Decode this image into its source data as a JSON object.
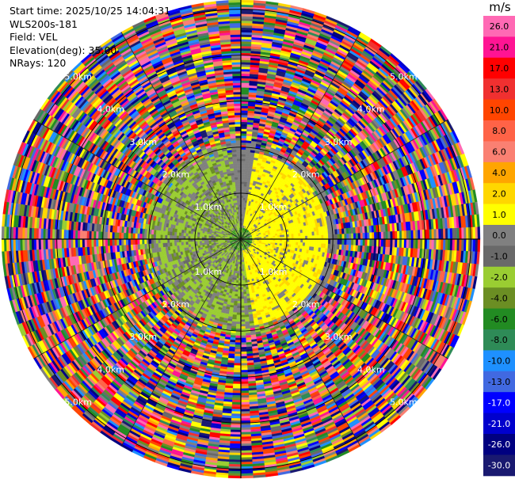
{
  "header": {
    "start_time": "Start time: 2025/10/25 14:04:31",
    "site": "WLS200s-181",
    "field": "Field: VEL",
    "elevation": "Elevation(deg): 35.00",
    "nrays": "NRays: 120"
  },
  "chart_data": {
    "type": "heatmap",
    "projection": "polar PPI",
    "field": "VEL",
    "n_rays": 120,
    "units": "m/s",
    "range_rings_km": [
      1.0,
      2.0,
      3.0,
      4.0,
      5.0
    ],
    "range_labels": [
      "1.0km",
      "2.0km",
      "3.0km",
      "4.0km",
      "5.0km"
    ],
    "max_range_km": 5.2,
    "colorbar": {
      "unit_label": "m/s",
      "ticks": [
        "26.0",
        "21.0",
        "17.0",
        "13.0",
        "10.0",
        "8.0",
        "6.0",
        "4.0",
        "2.0",
        "1.0",
        "0.0",
        "-1.0",
        "-2.0",
        "-4.0",
        "-6.0",
        "-8.0",
        "-10.0",
        "-13.0",
        "-17.0",
        "-21.0",
        "-26.0",
        "-30.0"
      ],
      "colors": [
        "#ff69b4",
        "#ff1493",
        "#ff0000",
        "#f03030",
        "#ff4500",
        "#ff6347",
        "#fa8072",
        "#ffa500",
        "#ffd700",
        "#ffff00",
        "#808080",
        "#696969",
        "#9acd32",
        "#6b8e23",
        "#228b22",
        "#2e8b57",
        "#1e90ff",
        "#4169e1",
        "#0000ff",
        "#0000cd",
        "#000080",
        "#191970"
      ]
    },
    "structure": {
      "noise_beyond_km": 2.1,
      "inner_field_dominant": "near-zero grey, positive yellow on east side, negative olive on south-west side"
    }
  }
}
